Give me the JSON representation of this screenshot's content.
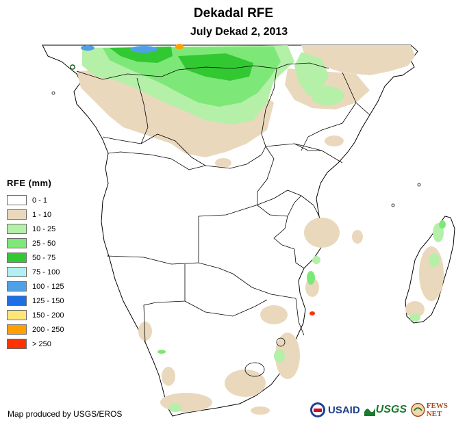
{
  "header": {
    "title": "Dekadal RFE",
    "subtitle": "July Dekad 2, 2013"
  },
  "legend": {
    "title": "RFE (mm)",
    "items": [
      {
        "label": "0 - 1",
        "color": "#ffffff"
      },
      {
        "label": "1 - 10",
        "color": "#ead8bd"
      },
      {
        "label": "10 - 25",
        "color": "#b4f0a8"
      },
      {
        "label": "25 - 50",
        "color": "#7de878"
      },
      {
        "label": "50 - 75",
        "color": "#32c832"
      },
      {
        "label": "75 - 100",
        "color": "#b4f0f0"
      },
      {
        "label": "100 - 125",
        "color": "#50a0e8"
      },
      {
        "label": "125 - 150",
        "color": "#1e6ee6"
      },
      {
        "label": "150 - 200",
        "color": "#ffe678"
      },
      {
        "label": "200 - 250",
        "color": "#ffa000"
      },
      {
        "label": "> 250",
        "color": "#ff3200"
      }
    ]
  },
  "footer": {
    "credit": "Map produced by USGS/EROS"
  },
  "logos": {
    "usaid": "USAID",
    "usgs": "USGS",
    "fewsnet": "FEWS NET"
  }
}
